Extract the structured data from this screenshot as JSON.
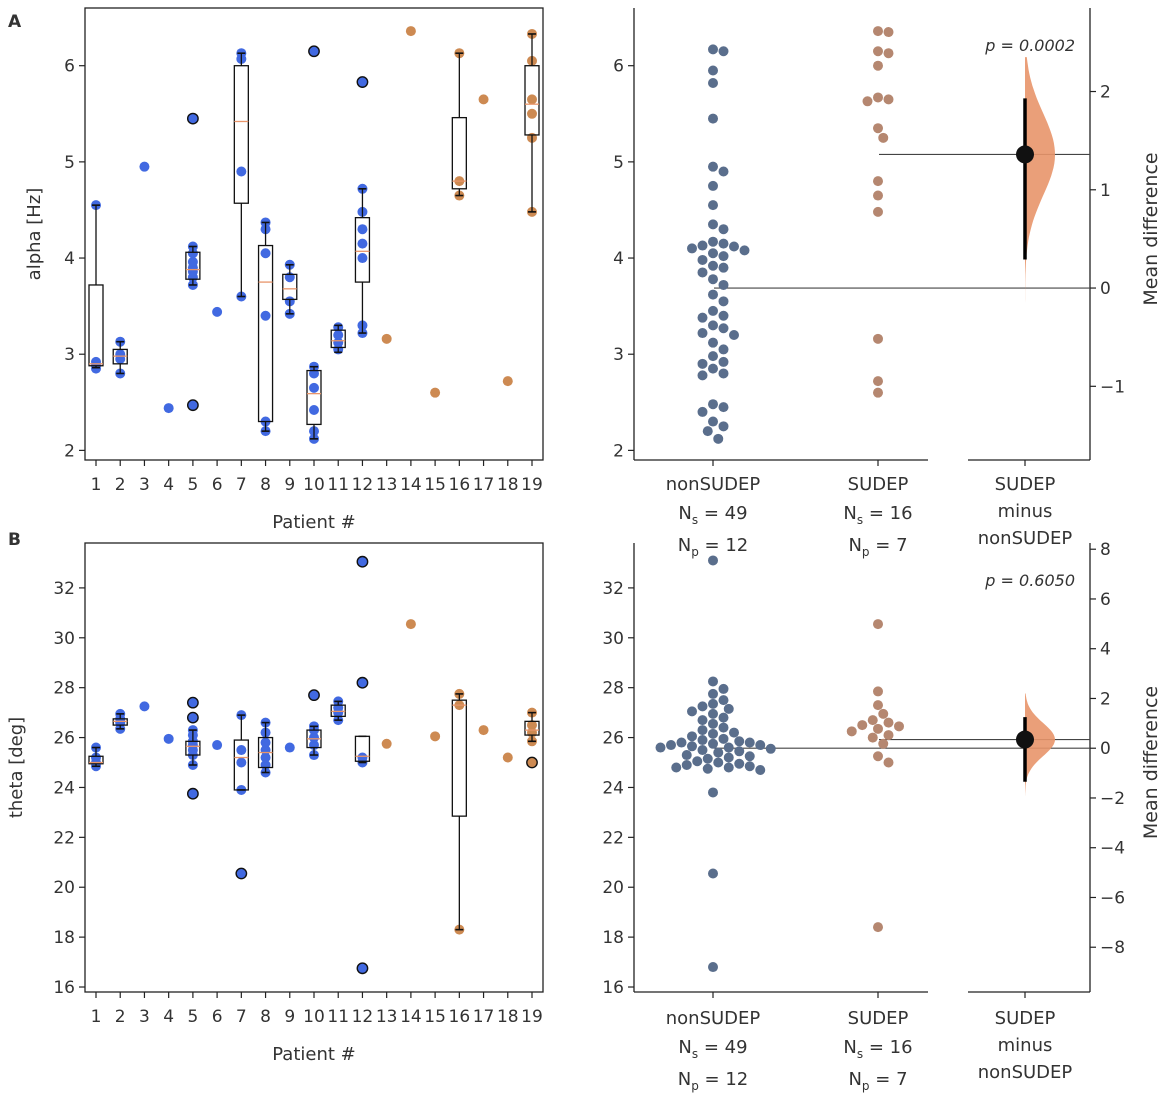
{
  "panels": {
    "A": {
      "letter": "A",
      "ylabel": "alpha [Hz]"
    },
    "B": {
      "letter": "B",
      "ylabel": "theta [deg]"
    }
  },
  "colors": {
    "nonsudep_box": "#4169e1",
    "sudep_box": "#cd8a52",
    "nonsudep_swarm": "#5a6e8c",
    "sudep_swarm": "#b58770",
    "effect": "#e8956a",
    "median": "#e8956a"
  },
  "chart_data": [
    {
      "id": "A-left",
      "type": "box",
      "title": "",
      "xlabel": "Patient #",
      "ylabel": "alpha [Hz]",
      "ylim": [
        1.9,
        6.6
      ],
      "yticks": [
        2,
        3,
        4,
        5,
        6
      ],
      "categories": [
        "1",
        "2",
        "3",
        "4",
        "5",
        "6",
        "7",
        "8",
        "9",
        "10",
        "11",
        "12",
        "13",
        "14",
        "15",
        "16",
        "17",
        "18",
        "19"
      ],
      "sudep_patients": [
        "13",
        "14",
        "15",
        "16",
        "17",
        "18",
        "19"
      ],
      "boxes": [
        {
          "patient": "1",
          "q1": 2.88,
          "median": 2.9,
          "q3": 3.72,
          "whislo": 2.86,
          "whishi": 4.55
        },
        {
          "patient": "2",
          "q1": 2.9,
          "median": 2.98,
          "q3": 3.05,
          "whislo": 2.8,
          "whishi": 3.13
        },
        {
          "patient": "5",
          "q1": 3.78,
          "median": 3.88,
          "q3": 4.06,
          "whislo": 3.72,
          "whishi": 4.12
        },
        {
          "patient": "7",
          "q1": 4.57,
          "median": 5.42,
          "q3": 6.0,
          "whislo": 3.6,
          "whishi": 6.13
        },
        {
          "patient": "8",
          "q1": 2.3,
          "median": 3.75,
          "q3": 4.13,
          "whislo": 2.2,
          "whishi": 4.37
        },
        {
          "patient": "9",
          "q1": 3.57,
          "median": 3.68,
          "q3": 3.83,
          "whislo": 3.42,
          "whishi": 3.93
        },
        {
          "patient": "10",
          "q1": 2.27,
          "median": 2.59,
          "q3": 2.83,
          "whislo": 2.12,
          "whishi": 2.87
        },
        {
          "patient": "11",
          "q1": 3.07,
          "median": 3.14,
          "q3": 3.25,
          "whislo": 3.02,
          "whishi": 3.3
        },
        {
          "patient": "12",
          "q1": 3.75,
          "median": 4.07,
          "q3": 4.42,
          "whislo": 3.22,
          "whishi": 4.72
        },
        {
          "patient": "16",
          "q1": 4.72,
          "median": 4.8,
          "q3": 5.46,
          "whislo": 4.65,
          "whishi": 6.13
        },
        {
          "patient": "19",
          "q1": 5.28,
          "median": 5.6,
          "q3": 6.0,
          "whislo": 4.48,
          "whishi": 6.33
        }
      ],
      "points": [
        {
          "patient": "1",
          "values": [
            2.85,
            2.88,
            2.92,
            4.55
          ]
        },
        {
          "patient": "2",
          "values": [
            2.8,
            2.95,
            3.0,
            3.13
          ]
        },
        {
          "patient": "3",
          "values": [
            4.95
          ]
        },
        {
          "patient": "4",
          "values": [
            2.44
          ]
        },
        {
          "patient": "5",
          "values": [
            3.72,
            3.8,
            3.86,
            3.9,
            3.96,
            4.05,
            4.12
          ]
        },
        {
          "patient": "6",
          "values": [
            3.44
          ]
        },
        {
          "patient": "7",
          "values": [
            3.6,
            4.9,
            6.07,
            6.13
          ]
        },
        {
          "patient": "8",
          "values": [
            2.2,
            2.3,
            3.4,
            4.05,
            4.3,
            4.37
          ]
        },
        {
          "patient": "9",
          "values": [
            3.42,
            3.55,
            3.8,
            3.93
          ]
        },
        {
          "patient": "10",
          "values": [
            2.12,
            2.2,
            2.42,
            2.65,
            2.8,
            2.87
          ]
        },
        {
          "patient": "11",
          "values": [
            3.05,
            3.12,
            3.2,
            3.28
          ]
        },
        {
          "patient": "12",
          "values": [
            3.22,
            3.3,
            4.0,
            4.15,
            4.3,
            4.48,
            4.72
          ]
        },
        {
          "patient": "13",
          "values": [
            3.16
          ]
        },
        {
          "patient": "14",
          "values": [
            6.36
          ]
        },
        {
          "patient": "15",
          "values": [
            2.6
          ]
        },
        {
          "patient": "16",
          "values": [
            4.65,
            4.8,
            6.13
          ]
        },
        {
          "patient": "17",
          "values": [
            5.65
          ]
        },
        {
          "patient": "18",
          "values": [
            2.72
          ]
        },
        {
          "patient": "19",
          "values": [
            4.48,
            5.25,
            5.5,
            5.65,
            6.05,
            6.33
          ]
        }
      ],
      "outliers": [
        {
          "patient": "5",
          "value": 5.45
        },
        {
          "patient": "5",
          "value": 2.47
        },
        {
          "patient": "10",
          "value": 6.15
        },
        {
          "patient": "12",
          "value": 5.83
        }
      ]
    },
    {
      "id": "A-right",
      "type": "estimation",
      "ylim": [
        1.9,
        6.6
      ],
      "yticks": [
        2,
        3,
        4,
        5,
        6
      ],
      "groups": [
        {
          "name": "nonSUDEP",
          "line2": "N",
          "sub2": "s",
          "value2": " = 49",
          "line3": "N",
          "sub3": "p",
          "value3": " = 12",
          "values": [
            6.17,
            6.15,
            5.95,
            5.82,
            5.45,
            4.95,
            4.9,
            4.75,
            4.55,
            4.35,
            4.3,
            4.17,
            4.15,
            4.13,
            4.12,
            4.1,
            4.08,
            4.05,
            4.02,
            3.98,
            3.92,
            3.9,
            3.85,
            3.78,
            3.72,
            3.62,
            3.55,
            3.45,
            3.4,
            3.38,
            3.3,
            3.27,
            3.22,
            3.2,
            3.12,
            3.05,
            2.98,
            2.92,
            2.9,
            2.85,
            2.8,
            2.78,
            2.48,
            2.45,
            2.4,
            2.3,
            2.25,
            2.2,
            2.12
          ]
        },
        {
          "name": "SUDEP",
          "line2": "N",
          "sub2": "s",
          "value2": " = 16",
          "line3": "N",
          "sub3": "p",
          "value3": " = 7",
          "values": [
            6.36,
            6.35,
            6.15,
            6.13,
            6.0,
            5.67,
            5.65,
            5.63,
            5.35,
            5.25,
            4.8,
            4.65,
            4.48,
            3.16,
            2.72,
            2.6
          ]
        }
      ],
      "diff_label": [
        "SUDEP",
        "minus",
        "nonSUDEP"
      ],
      "diff_ylim": [
        -1.75,
        2.85
      ],
      "diff_yticks": [
        -1,
        0,
        1,
        2
      ],
      "diff_ylabel": "Mean difference",
      "mean_diff": 1.36,
      "ci": [
        0.29,
        1.93
      ],
      "dist_range": [
        -0.15,
        2.35
      ],
      "control_mean": 3.68,
      "pvalue": "p = 0.0002"
    },
    {
      "id": "B-left",
      "type": "box",
      "title": "",
      "xlabel": "Patient #",
      "ylabel": "theta [deg]",
      "ylim": [
        15.8,
        33.8
      ],
      "yticks": [
        16,
        18,
        20,
        22,
        24,
        26,
        28,
        30,
        32
      ],
      "categories": [
        "1",
        "2",
        "3",
        "4",
        "5",
        "6",
        "7",
        "8",
        "9",
        "10",
        "11",
        "12",
        "13",
        "14",
        "15",
        "16",
        "17",
        "18",
        "19"
      ],
      "sudep_patients": [
        "13",
        "14",
        "15",
        "16",
        "17",
        "18",
        "19"
      ],
      "boxes": [
        {
          "patient": "1",
          "q1": 24.95,
          "median": 25.0,
          "q3": 25.25,
          "whislo": 24.85,
          "whishi": 25.6
        },
        {
          "patient": "2",
          "q1": 26.5,
          "median": 26.65,
          "q3": 26.75,
          "whislo": 26.35,
          "whishi": 26.95
        },
        {
          "patient": "5",
          "q1": 25.3,
          "median": 25.65,
          "q3": 25.85,
          "whislo": 24.9,
          "whishi": 26.3
        },
        {
          "patient": "7",
          "q1": 23.9,
          "median": 25.2,
          "q3": 25.9,
          "whislo": 23.9,
          "whishi": 26.9
        },
        {
          "patient": "8",
          "q1": 24.8,
          "median": 25.4,
          "q3": 26.0,
          "whislo": 24.6,
          "whishi": 26.6
        },
        {
          "patient": "10",
          "q1": 25.6,
          "median": 25.95,
          "q3": 26.3,
          "whislo": 25.3,
          "whishi": 26.45
        },
        {
          "patient": "11",
          "q1": 26.85,
          "median": 27.05,
          "q3": 27.3,
          "whislo": 26.7,
          "whishi": 27.45
        },
        {
          "patient": "12",
          "q1": 25.05,
          "median": 25.25,
          "q3": 26.05,
          "whislo": 25.0,
          "whishi": 26.05
        },
        {
          "patient": "16",
          "q1": 22.85,
          "median": 27.3,
          "q3": 27.5,
          "whislo": 18.3,
          "whishi": 27.75
        },
        {
          "patient": "19",
          "q1": 26.1,
          "median": 26.3,
          "q3": 26.65,
          "whislo": 25.85,
          "whishi": 27.0
        }
      ],
      "points": [
        {
          "patient": "1",
          "values": [
            24.85,
            25.0,
            25.2,
            25.6
          ]
        },
        {
          "patient": "2",
          "values": [
            26.35,
            26.6,
            26.75,
            26.95
          ]
        },
        {
          "patient": "3",
          "values": [
            27.25
          ]
        },
        {
          "patient": "4",
          "values": [
            25.95
          ]
        },
        {
          "patient": "5",
          "values": [
            24.9,
            25.3,
            25.5,
            25.7,
            25.85,
            26.1,
            26.3
          ]
        },
        {
          "patient": "6",
          "values": [
            25.7
          ]
        },
        {
          "patient": "7",
          "values": [
            23.9,
            25.0,
            25.5,
            26.9
          ]
        },
        {
          "patient": "8",
          "values": [
            24.6,
            24.9,
            25.2,
            25.5,
            25.8,
            26.2,
            26.6
          ]
        },
        {
          "patient": "9",
          "values": [
            25.6
          ]
        },
        {
          "patient": "10",
          "values": [
            25.3,
            25.7,
            26.0,
            26.3,
            26.45
          ]
        },
        {
          "patient": "11",
          "values": [
            26.7,
            27.0,
            27.2,
            27.45
          ]
        },
        {
          "patient": "12",
          "values": [
            25.0,
            25.2
          ]
        },
        {
          "patient": "13",
          "values": [
            25.75
          ]
        },
        {
          "patient": "14",
          "values": [
            30.55
          ]
        },
        {
          "patient": "15",
          "values": [
            26.05
          ]
        },
        {
          "patient": "16",
          "values": [
            18.3,
            27.3,
            27.75
          ]
        },
        {
          "patient": "17",
          "values": [
            26.3
          ]
        },
        {
          "patient": "18",
          "values": [
            25.2
          ]
        },
        {
          "patient": "19",
          "values": [
            25.85,
            26.2,
            26.5,
            27.0
          ]
        }
      ],
      "outliers": [
        {
          "patient": "5",
          "value": 27.4
        },
        {
          "patient": "5",
          "value": 26.8
        },
        {
          "patient": "5",
          "value": 23.75
        },
        {
          "patient": "7",
          "value": 20.55
        },
        {
          "patient": "10",
          "value": 27.7
        },
        {
          "patient": "12",
          "value": 33.05
        },
        {
          "patient": "12",
          "value": 28.2
        },
        {
          "patient": "12",
          "value": 16.75
        },
        {
          "patient": "19",
          "value": 25.0
        }
      ]
    },
    {
      "id": "B-right",
      "type": "estimation",
      "ylim": [
        15.8,
        33.8
      ],
      "yticks": [
        16,
        18,
        20,
        22,
        24,
        26,
        28,
        30,
        32
      ],
      "groups": [
        {
          "name": "nonSUDEP",
          "line2": "N",
          "sub2": "s",
          "value2": " = 49",
          "line3": "N",
          "sub3": "p",
          "value3": " = 12",
          "values": [
            33.1,
            28.25,
            27.95,
            27.75,
            27.5,
            27.35,
            27.25,
            27.15,
            27.05,
            26.95,
            26.8,
            26.7,
            26.55,
            26.4,
            26.3,
            26.2,
            26.15,
            26.05,
            25.95,
            25.9,
            25.85,
            25.8,
            25.8,
            25.75,
            25.7,
            25.7,
            25.65,
            25.6,
            25.55,
            25.5,
            25.45,
            25.4,
            25.3,
            25.25,
            25.2,
            25.15,
            25.05,
            25.0,
            24.95,
            24.9,
            24.85,
            24.8,
            24.8,
            24.75,
            24.7,
            23.8,
            20.55,
            16.8,
            25.6
          ]
        },
        {
          "name": "SUDEP",
          "line2": "N",
          "sub2": "s",
          "value2": " = 16",
          "line3": "N",
          "sub3": "p",
          "value3": " = 7",
          "values": [
            30.55,
            27.85,
            27.3,
            26.95,
            26.7,
            26.6,
            26.5,
            26.45,
            26.35,
            26.25,
            26.1,
            26.0,
            25.75,
            25.25,
            25.0,
            18.4
          ]
        }
      ],
      "diff_label": [
        "SUDEP",
        "minus",
        "nonSUDEP"
      ],
      "diff_ylim": [
        -9.8,
        8.25
      ],
      "diff_yticks": [
        -8,
        -6,
        -4,
        -2,
        0,
        2,
        4,
        6,
        8
      ],
      "diff_ylabel": "Mean difference",
      "mean_diff": 0.35,
      "ci": [
        -1.35,
        1.25
      ],
      "dist_range": [
        -1.9,
        2.2
      ],
      "control_mean": 25.75,
      "pvalue": "p = 0.6050"
    }
  ]
}
